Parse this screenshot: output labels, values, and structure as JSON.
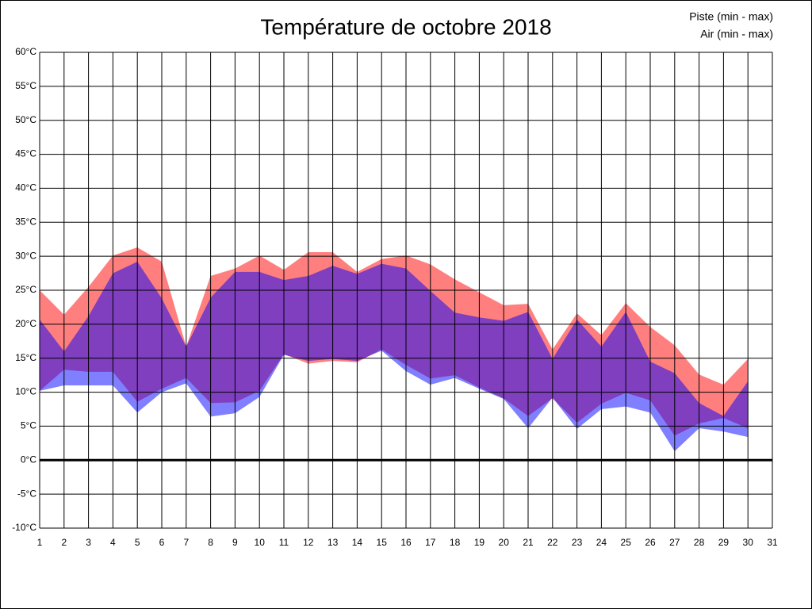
{
  "chart_data": {
    "type": "range-area",
    "title": "Température de octobre 2018",
    "x": [
      1,
      2,
      3,
      4,
      5,
      6,
      7,
      8,
      9,
      10,
      11,
      12,
      13,
      14,
      15,
      16,
      17,
      18,
      19,
      20,
      21,
      22,
      23,
      24,
      25,
      26,
      27,
      28,
      29,
      30
    ],
    "series": [
      {
        "name": "Piste (min - max)",
        "color": "#ff0000",
        "min": [
          10.2,
          13.3,
          13,
          13,
          8.6,
          10.5,
          12.1,
          8.4,
          8.5,
          10.2,
          15.6,
          14.2,
          14.6,
          14.4,
          16.3,
          14,
          12,
          12.5,
          10.7,
          9.1,
          6.5,
          9.1,
          5.5,
          8.3,
          9.9,
          8.8,
          3.6,
          5.4,
          6.2,
          4.7
        ],
        "max": [
          25,
          21.4,
          25.5,
          30.1,
          31.3,
          29.2,
          16.7,
          27.1,
          28.2,
          30.1,
          28,
          30.6,
          30.6,
          27.7,
          29.6,
          30.1,
          28.8,
          26.6,
          24.7,
          22.8,
          23,
          16.3,
          21.6,
          18.4,
          23.1,
          19.6,
          16.9,
          12.6,
          11.1,
          14.9
        ]
      },
      {
        "name": "Air (min - max)",
        "color": "#0000ff",
        "min": [
          10.2,
          11,
          11,
          11,
          7,
          10,
          11.3,
          6.4,
          6.9,
          9.3,
          15.5,
          14.6,
          14.9,
          14.6,
          16.1,
          13.1,
          11.1,
          12.1,
          10.5,
          9,
          4.7,
          9.2,
          4.6,
          7.5,
          7.9,
          7,
          1.3,
          4.7,
          4.2,
          3.4
        ],
        "max": [
          20.7,
          16,
          21.2,
          27.5,
          29.2,
          23.8,
          16.7,
          23.9,
          27.7,
          27.7,
          26.5,
          27.1,
          28.6,
          27.4,
          28.9,
          28.2,
          24.9,
          21.7,
          21,
          20.5,
          21.8,
          14.9,
          20.7,
          16.7,
          21.8,
          14.5,
          12.8,
          8.4,
          6.5,
          11.6
        ]
      }
    ],
    "xlim": [
      1,
      31
    ],
    "xticks": [
      1,
      2,
      3,
      4,
      5,
      6,
      7,
      8,
      9,
      10,
      11,
      12,
      13,
      14,
      15,
      16,
      17,
      18,
      19,
      20,
      21,
      22,
      23,
      24,
      25,
      26,
      27,
      28,
      29,
      30,
      31
    ],
    "ylim": [
      -10,
      60
    ],
    "yticks": [
      {
        "value": -10,
        "label": "-10°C"
      },
      {
        "value": -5,
        "label": "-5°C"
      },
      {
        "value": 0,
        "label": "0°C"
      },
      {
        "value": 5,
        "label": "5°C"
      },
      {
        "value": 10,
        "label": "10°C"
      },
      {
        "value": 15,
        "label": "15°C"
      },
      {
        "value": 20,
        "label": "20°C"
      },
      {
        "value": 25,
        "label": "25°C"
      },
      {
        "value": 30,
        "label": "30°C"
      },
      {
        "value": 35,
        "label": "35°C"
      },
      {
        "value": 40,
        "label": "40°C"
      },
      {
        "value": 45,
        "label": "45°C"
      },
      {
        "value": 50,
        "label": "50°C"
      },
      {
        "value": 55,
        "label": "55°C"
      },
      {
        "value": 60,
        "label": "60°C"
      }
    ],
    "grid": true,
    "legend": "top-right"
  }
}
